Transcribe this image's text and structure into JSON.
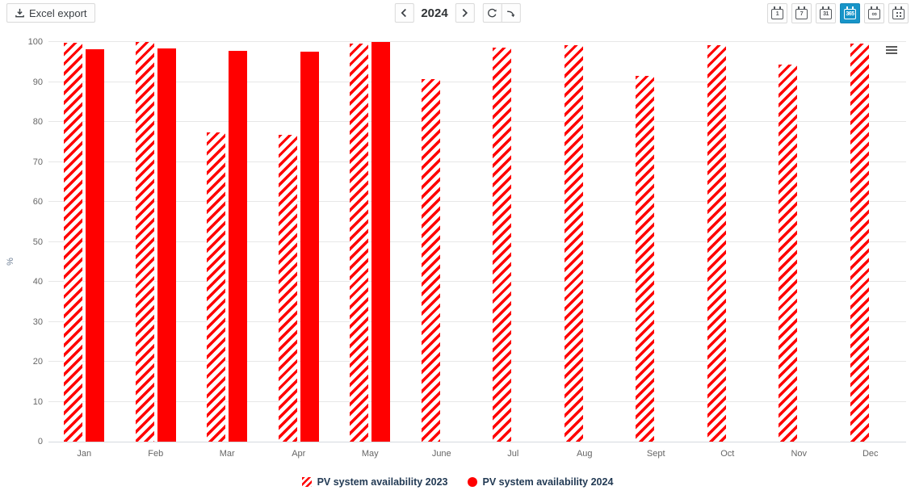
{
  "toolbar": {
    "excel_export_label": "Excel export",
    "nav": {
      "year": "2024"
    },
    "range_buttons": [
      {
        "id": "day",
        "label": "1",
        "selected": false
      },
      {
        "id": "week",
        "label": "7",
        "selected": false
      },
      {
        "id": "month",
        "label": "31",
        "selected": false
      },
      {
        "id": "year",
        "label": "365",
        "selected": true
      },
      {
        "id": "lifetime",
        "label": "∞",
        "selected": false
      },
      {
        "id": "custom",
        "label": "",
        "selected": false
      }
    ]
  },
  "chart_data": {
    "type": "bar",
    "title": "",
    "xlabel": "",
    "ylabel": "%",
    "ylim": [
      0,
      102
    ],
    "yticks": [
      0,
      10,
      20,
      30,
      40,
      50,
      60,
      70,
      80,
      90,
      100
    ],
    "grid": true,
    "legend_position": "bottom",
    "categories": [
      "Jan",
      "Feb",
      "Mar",
      "Apr",
      "May",
      "June",
      "Jul",
      "Aug",
      "Sept",
      "Oct",
      "Nov",
      "Dec"
    ],
    "series": [
      {
        "name": "PV system availability 2023",
        "style": "hatched",
        "color": "#ff0000",
        "values": [
          99.8,
          100,
          77.3,
          76.8,
          99.6,
          90.7,
          98.5,
          99.1,
          91.5,
          99.2,
          94.3,
          99.7
        ]
      },
      {
        "name": "PV system availability 2024",
        "style": "solid",
        "color": "#ff0000",
        "values": [
          98.2,
          98.4,
          97.8,
          97.6,
          100,
          null,
          null,
          null,
          null,
          null,
          null,
          null
        ]
      }
    ]
  },
  "colors": {
    "bar_red": "#ff0000",
    "selected_range_blue": "#1794c8",
    "gridline": "#e7e7e7",
    "axis_text": "#666666",
    "y_axis_title_text": "#6e7f95",
    "legend_text": "#223a54"
  },
  "icons": {
    "excel_export": "download-icon",
    "nav_prev": "chevron-left-icon",
    "nav_next": "chevron-right-icon",
    "refresh": "refresh-icon",
    "jump_latest": "curved-arrow-icon",
    "range": [
      "calendar-1-icon",
      "calendar-7-icon",
      "calendar-31-icon",
      "calendar-365-icon",
      "calendar-infinity-icon",
      "calendar-custom-dates-icon"
    ],
    "chart_menu": "hamburger-menu-icon"
  }
}
